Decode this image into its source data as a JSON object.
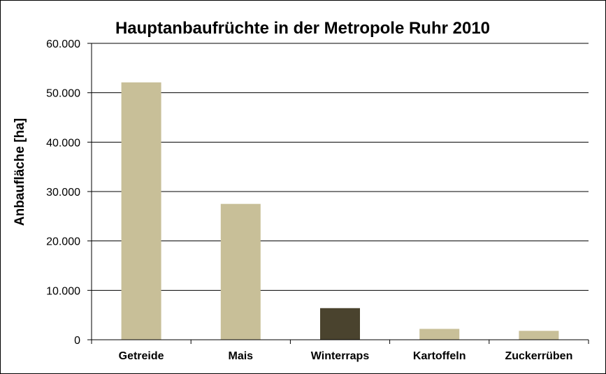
{
  "chart_data": {
    "type": "bar",
    "title": "Hauptanbaufrüchte in der Metropole Ruhr 2010",
    "xlabel": "",
    "ylabel": "Anbaufläche  [ha]",
    "categories": [
      "Getreide",
      "Mais",
      "Winterraps",
      "Kartoffeln",
      "Zuckerrüben"
    ],
    "values": [
      52100,
      27500,
      6400,
      2200,
      1800
    ],
    "bar_colors": [
      "#c8bf98",
      "#c8bf98",
      "#4a432e",
      "#c8bf98",
      "#c8bf98"
    ],
    "ylim": [
      0,
      60000
    ],
    "yticks": [
      0,
      10000,
      20000,
      30000,
      40000,
      50000,
      60000
    ],
    "ytick_labels": [
      "0",
      "10.000",
      "20.000",
      "30.000",
      "40.000",
      "50.000",
      "60.000"
    ],
    "grid": true,
    "legend": "none"
  }
}
